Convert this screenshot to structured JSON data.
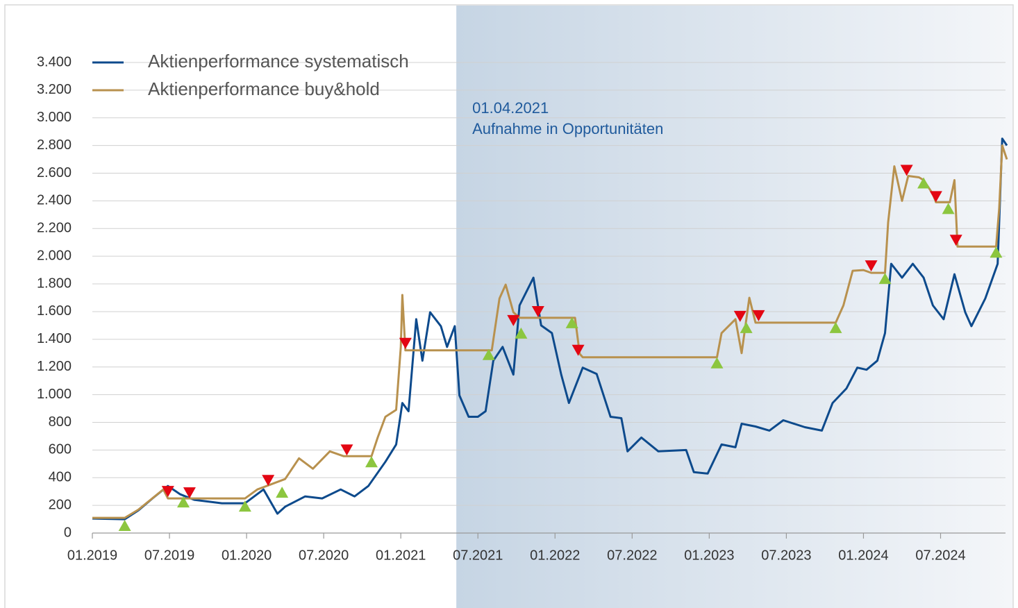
{
  "chart_data": {
    "type": "line",
    "xlim": [
      2019,
      2024.93
    ],
    "ylim": [
      0,
      3400
    ],
    "xticks": [
      {
        "value": 2019,
        "label": "01.2019"
      },
      {
        "value": 2019.5,
        "label": "07.2019"
      },
      {
        "value": 2020,
        "label": "01.2020"
      },
      {
        "value": 2020.5,
        "label": "07.2020"
      },
      {
        "value": 2021,
        "label": "01.2021"
      },
      {
        "value": 2021.5,
        "label": "07.2021"
      },
      {
        "value": 2022,
        "label": "01.2022"
      },
      {
        "value": 2022.5,
        "label": "07.2022"
      },
      {
        "value": 2023,
        "label": "01.2023"
      },
      {
        "value": 2023.5,
        "label": "07.2023"
      },
      {
        "value": 2024,
        "label": "01.2024"
      },
      {
        "value": 2024.5,
        "label": "07.2024"
      }
    ],
    "yticks": [
      0,
      200,
      400,
      600,
      800,
      {
        "value": 1000,
        "label": "1.000"
      },
      {
        "value": 1200,
        "label": "1.200"
      },
      {
        "value": 1400,
        "label": "1.400"
      },
      {
        "value": 1600,
        "label": "1.600"
      },
      {
        "value": 1800,
        "label": "1.800"
      },
      {
        "value": 2000,
        "label": "2.000"
      },
      {
        "value": 2200,
        "label": "2.200"
      },
      {
        "value": 2400,
        "label": "2.400"
      },
      {
        "value": 2600,
        "label": "2.600"
      },
      {
        "value": 2800,
        "label": "2.800"
      },
      {
        "value": 3000,
        "label": "3.000"
      },
      {
        "value": 3200,
        "label": "3.200"
      },
      {
        "value": 3400,
        "label": "3.400"
      }
    ],
    "grid": true,
    "legend": "top-left",
    "annotation": {
      "x": 2021.36,
      "date": "01.04.2021",
      "text": "Aufnahme in Opportunitäten"
    },
    "series": [
      {
        "name": "Aktienperformance systematisch",
        "color": "#0d4a8c",
        "x": [
          2019.0,
          2019.21,
          2019.3,
          2019.39,
          2019.49,
          2019.57,
          2019.66,
          2019.84,
          2019.99,
          2020.11,
          2020.2,
          2020.25,
          2020.38,
          2020.49,
          2020.61,
          2020.7,
          2020.79,
          2020.9,
          2020.97,
          2021.01,
          2021.05,
          2021.1,
          2021.14,
          2021.19,
          2021.26,
          2021.3,
          2021.35,
          2021.38,
          2021.44,
          2021.5,
          2021.55,
          2021.6,
          2021.66,
          2021.73,
          2021.77,
          2021.86,
          2021.91,
          2021.98,
          2022.04,
          2022.09,
          2022.18,
          2022.27,
          2022.36,
          2022.43,
          2022.47,
          2022.56,
          2022.67,
          2022.85,
          2022.9,
          2022.99,
          2023.08,
          2023.17,
          2023.21,
          2023.3,
          2023.39,
          2023.48,
          2023.62,
          2023.73,
          2023.8,
          2023.89,
          2023.96,
          2024.02,
          2024.09,
          2024.14,
          2024.18,
          2024.25,
          2024.32,
          2024.39,
          2024.45,
          2024.52,
          2024.59,
          2024.66,
          2024.7,
          2024.79,
          2024.87,
          2024.9,
          2024.93
        ],
        "values": [
          105,
          100,
          165,
          250,
          340,
          280,
          240,
          215,
          215,
          315,
          140,
          190,
          265,
          250,
          315,
          265,
          340,
          515,
          640,
          940,
          880,
          1545,
          1245,
          1595,
          1495,
          1345,
          1495,
          995,
          840,
          840,
          880,
          1245,
          1345,
          1145,
          1645,
          1845,
          1500,
          1445,
          1145,
          940,
          1195,
          1150,
          840,
          830,
          590,
          690,
          590,
          600,
          440,
          430,
          640,
          620,
          790,
          770,
          740,
          815,
          765,
          740,
          940,
          1045,
          1195,
          1180,
          1245,
          1445,
          1945,
          1845,
          1945,
          1845,
          1645,
          1545,
          1870,
          1595,
          1495,
          1695,
          1945,
          2850,
          2800
        ]
      },
      {
        "name": "Aktienperformance buy&hold",
        "color": "#b8914e",
        "x": [
          2019.0,
          2019.21,
          2019.3,
          2019.46,
          2019.49,
          2019.99,
          2020.07,
          2020.13,
          2020.25,
          2020.34,
          2020.43,
          2020.54,
          2020.63,
          2020.81,
          2020.85,
          2020.9,
          2020.97,
          2021.0,
          2021.01,
          2021.03,
          2021.59,
          2021.6,
          2021.64,
          2021.68,
          2021.73,
          2021.77,
          2022.13,
          2022.16,
          2022.18,
          2023.05,
          2023.08,
          2023.17,
          2023.21,
          2023.26,
          2023.3,
          2023.82,
          2023.87,
          2023.93,
          2024.0,
          2024.05,
          2024.14,
          2024.16,
          2024.2,
          2024.25,
          2024.29,
          2024.36,
          2024.39,
          2024.45,
          2024.47,
          2024.56,
          2024.59,
          2024.61,
          2024.86,
          2024.88,
          2024.9,
          2024.93
        ],
        "values": [
          110,
          110,
          170,
          315,
          250,
          250,
          315,
          340,
          390,
          540,
          465,
          590,
          555,
          555,
          690,
          840,
          890,
          1345,
          1720,
          1320,
          1320,
          1395,
          1695,
          1795,
          1595,
          1555,
          1555,
          1295,
          1270,
          1270,
          1445,
          1545,
          1300,
          1700,
          1520,
          1520,
          1645,
          1895,
          1900,
          1880,
          1880,
          2245,
          2650,
          2400,
          2580,
          2570,
          2550,
          2450,
          2390,
          2390,
          2550,
          2070,
          2070,
          2345,
          2800,
          2700
        ]
      }
    ],
    "sell_signals": {
      "color": "#e30613",
      "x": [
        2019.49,
        2019.63,
        2020.14,
        2020.65,
        2021.03,
        2021.73,
        2021.89,
        2022.15,
        2023.2,
        2023.32,
        2024.05,
        2024.28,
        2024.47,
        2024.6
      ],
      "values": [
        300,
        290,
        380,
        600,
        1370,
        1535,
        1600,
        1320,
        1565,
        1570,
        1930,
        2620,
        2430,
        2115
      ]
    },
    "buy_signals": {
      "color": "#8cc63f",
      "x": [
        2019.21,
        2019.59,
        2019.99,
        2020.23,
        2020.81,
        2021.57,
        2021.78,
        2022.11,
        2023.05,
        2023.24,
        2023.82,
        2024.14,
        2024.39,
        2024.55,
        2024.86
      ],
      "values": [
        55,
        225,
        195,
        295,
        515,
        1290,
        1445,
        1520,
        1230,
        1485,
        1485,
        1840,
        2530,
        2345,
        2030
      ]
    }
  }
}
